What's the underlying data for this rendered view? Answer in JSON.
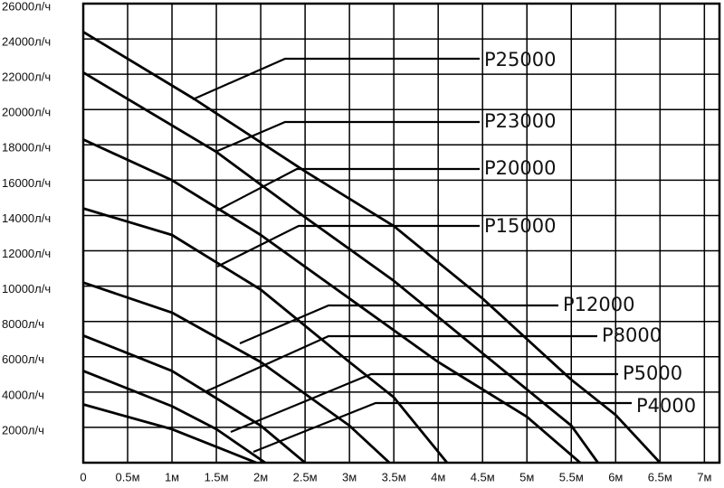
{
  "chart_data": {
    "type": "line",
    "xlim": [
      0,
      7.17
    ],
    "ylim": [
      0,
      26000
    ],
    "xticks": [
      0,
      {
        "value": 0.5,
        "label": "0.5м"
      },
      {
        "value": 1,
        "label": "1м"
      },
      {
        "value": 1.5,
        "label": "1.5м"
      },
      {
        "value": 2,
        "label": "2м"
      },
      {
        "value": 2.5,
        "label": "2.5м"
      },
      {
        "value": 3,
        "label": "3м"
      },
      {
        "value": 3.5,
        "label": "3.5м"
      },
      {
        "value": 4,
        "label": "4м"
      },
      {
        "value": 4.5,
        "label": "4.5м"
      },
      {
        "value": 5,
        "label": "5м"
      },
      {
        "value": 5.5,
        "label": "5.5м"
      },
      {
        "value": 6,
        "label": "6м"
      },
      {
        "value": 6.5,
        "label": "6.5м"
      },
      {
        "value": 7,
        "label": "7м"
      }
    ],
    "yticks": [
      {
        "value": 2000,
        "label": "2000л/ч"
      },
      {
        "value": 4000,
        "label": "4000л/ч"
      },
      {
        "value": 6000,
        "label": "6000л/ч"
      },
      {
        "value": 8000,
        "label": "8000л/ч"
      },
      {
        "value": 10000,
        "label": "10000л/ч"
      },
      {
        "value": 12000,
        "label": "12000л/ч"
      },
      {
        "value": 14000,
        "label": "14000л/ч"
      },
      {
        "value": 16000,
        "label": "16000л/ч"
      },
      {
        "value": 18000,
        "label": "18000л/ч"
      },
      {
        "value": 20000,
        "label": "20000л/ч"
      },
      {
        "value": 22000,
        "label": "22000л/ч"
      },
      {
        "value": 24000,
        "label": "24000л/ч"
      },
      {
        "value": 26000,
        "label": "26000л/ч"
      }
    ],
    "grid": true,
    "series": [
      {
        "name": "P25000",
        "color": "#000000",
        "x": [
          0,
          1.25,
          2.5,
          3.5,
          4.5,
          5.5,
          6,
          6.5
        ],
        "values": [
          24400,
          20600,
          16500,
          13400,
          9300,
          4700,
          2700,
          0
        ]
      },
      {
        "name": "P23000",
        "color": "#000000",
        "x": [
          0,
          1.5,
          2.5,
          3.5,
          4.5,
          5.5,
          5.8
        ],
        "values": [
          22100,
          17600,
          13900,
          10300,
          6200,
          2100,
          0
        ]
      },
      {
        "name": "P20000",
        "color": "#000000",
        "x": [
          0,
          1,
          2,
          3,
          4,
          5,
          5.6
        ],
        "values": [
          18300,
          16000,
          12900,
          9300,
          5700,
          2600,
          0
        ]
      },
      {
        "name": "P15000",
        "color": "#000000",
        "x": [
          0,
          1,
          2,
          3,
          3.5,
          4.1
        ],
        "values": [
          14400,
          12900,
          9800,
          5700,
          3700,
          0
        ]
      },
      {
        "name": "P12000",
        "color": "#000000",
        "x": [
          0,
          1,
          2,
          3,
          3.45
        ],
        "values": [
          10200,
          8500,
          5700,
          2100,
          0
        ]
      },
      {
        "name": "P8000",
        "color": "#000000",
        "x": [
          0,
          1,
          2,
          2.5
        ],
        "values": [
          7200,
          5200,
          2100,
          0
        ]
      },
      {
        "name": "P5000",
        "color": "#000000",
        "x": [
          0,
          1,
          1.5,
          2.05
        ],
        "values": [
          5200,
          3200,
          1900,
          0
        ]
      },
      {
        "name": "P4000",
        "color": "#000000",
        "x": [
          0,
          1,
          1.5,
          1.95
        ],
        "values": [
          3300,
          1900,
          900,
          0
        ]
      }
    ]
  }
}
